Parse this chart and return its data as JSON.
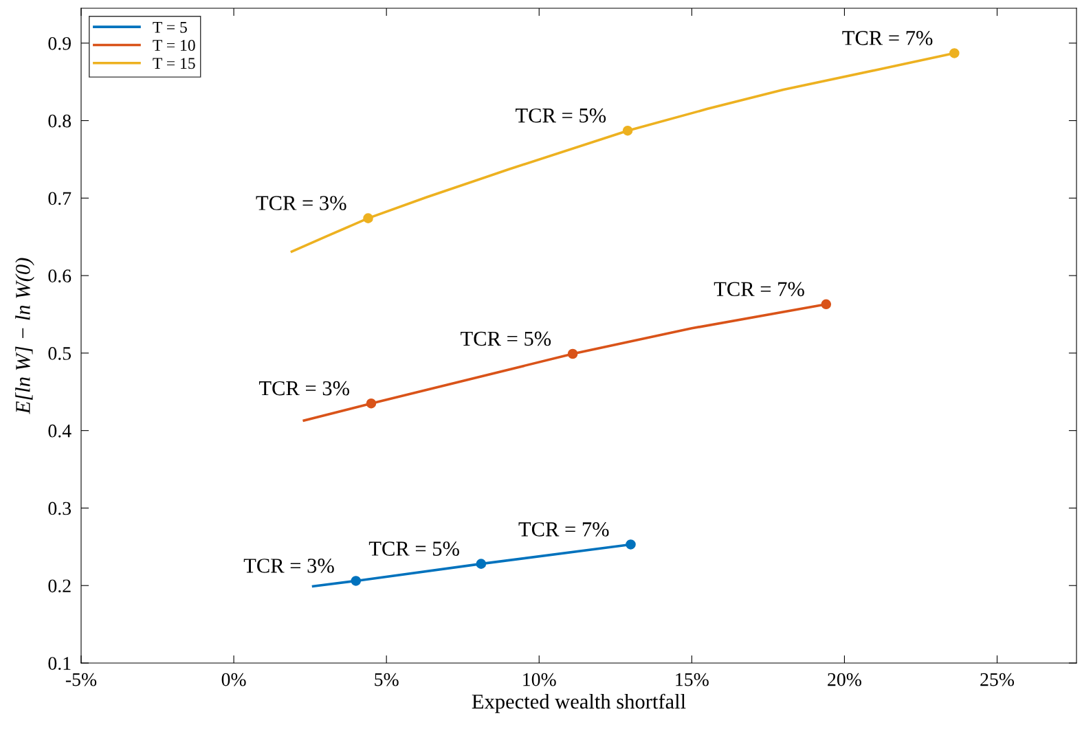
{
  "chart_data": {
    "type": "line",
    "xlabel": "Expected wealth shortfall",
    "ylabel": "E[ln W] − ln W(0)",
    "xlim": [
      -5,
      27.6
    ],
    "ylim": [
      0.1,
      0.945
    ],
    "xticks": [
      {
        "value": -5,
        "label": "-5%"
      },
      {
        "value": 0,
        "label": "0%"
      },
      {
        "value": 5,
        "label": "5%"
      },
      {
        "value": 10,
        "label": "10%"
      },
      {
        "value": 15,
        "label": "15%"
      },
      {
        "value": 20,
        "label": "20%"
      },
      {
        "value": 25,
        "label": "25%"
      }
    ],
    "yticks": [
      0.1,
      0.2,
      0.3,
      0.4,
      0.5,
      0.6,
      0.7,
      0.8,
      0.9
    ],
    "grid": false,
    "legend": "top left",
    "line_style": "solid",
    "series": [
      {
        "name": "T = 5",
        "color": "#0072bd",
        "x": [
          2.6,
          4.0,
          8.1,
          13.0
        ],
        "values": [
          0.199,
          0.206,
          0.228,
          0.253
        ]
      },
      {
        "name": "T = 10",
        "color": "#d95319",
        "x": [
          2.3,
          4.5,
          11.1,
          15.0,
          19.4
        ],
        "values": [
          0.413,
          0.435,
          0.499,
          0.532,
          0.563
        ]
      },
      {
        "name": "T = 15",
        "color": "#edb120",
        "x": [
          1.9,
          3.0,
          4.4,
          6.3,
          9.0,
          12.9,
          15.5,
          18.0,
          21.0,
          23.6
        ],
        "values": [
          0.631,
          0.65,
          0.674,
          0.701,
          0.737,
          0.787,
          0.815,
          0.84,
          0.865,
          0.887
        ]
      },
      {
        "type": "scatter",
        "color": "#0072bd",
        "marker": "circle",
        "x": [
          4.0,
          8.1,
          13.0
        ],
        "values": [
          0.206,
          0.228,
          0.253
        ]
      },
      {
        "type": "scatter",
        "color": "#d95319",
        "marker": "circle",
        "x": [
          4.5,
          11.1,
          19.4
        ],
        "values": [
          0.435,
          0.499,
          0.563
        ]
      },
      {
        "type": "scatter",
        "color": "#edb120",
        "marker": "circle",
        "x": [
          4.4,
          12.9,
          23.6
        ],
        "values": [
          0.674,
          0.787,
          0.887
        ]
      }
    ],
    "annotations": [
      {
        "text": "TCR = 3%",
        "x": 4.0,
        "y": 0.206
      },
      {
        "text": "TCR = 5%",
        "x": 8.1,
        "y": 0.228
      },
      {
        "text": "TCR = 7%",
        "x": 13.0,
        "y": 0.253
      },
      {
        "text": "TCR = 3%",
        "x": 4.5,
        "y": 0.435
      },
      {
        "text": "TCR = 5%",
        "x": 11.1,
        "y": 0.499
      },
      {
        "text": "TCR = 7%",
        "x": 19.4,
        "y": 0.563
      },
      {
        "text": "TCR = 3%",
        "x": 4.4,
        "y": 0.674
      },
      {
        "text": "TCR = 5%",
        "x": 12.9,
        "y": 0.787
      },
      {
        "text": "TCR = 7%",
        "x": 23.6,
        "y": 0.887
      }
    ]
  }
}
